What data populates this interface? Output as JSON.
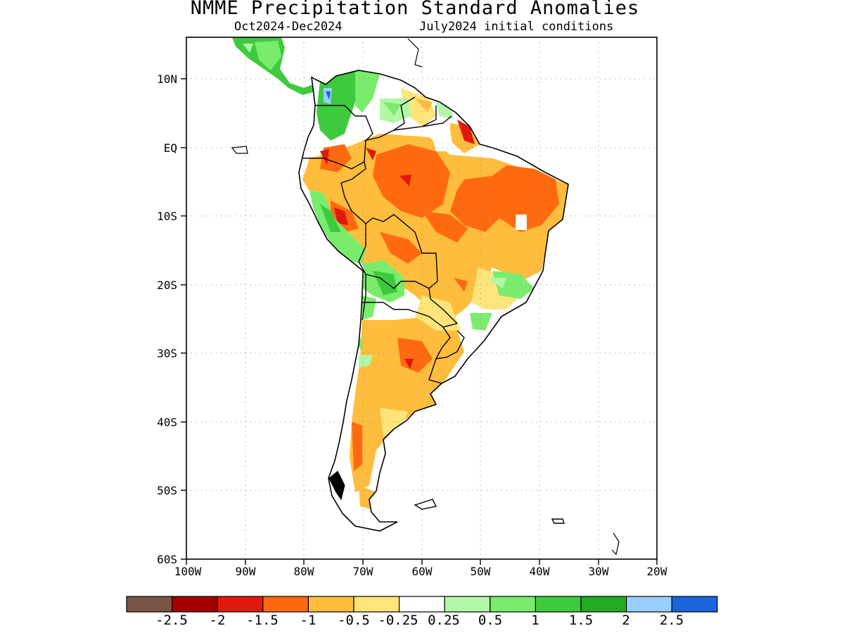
{
  "title": "NMME Precipitation Standard Anomalies",
  "period": "Oct2024-Dec2024",
  "initial_conditions": "July2024 initial conditions",
  "map": {
    "region": "South America",
    "lat_ticks": [
      "10N",
      "EQ",
      "10S",
      "20S",
      "30S",
      "40S",
      "50S",
      "60S"
    ],
    "lon_ticks": [
      "100W",
      "90W",
      "80W",
      "70W",
      "60W",
      "50W",
      "40W",
      "30W",
      "20W"
    ],
    "grid": "dotted"
  },
  "colorbar": {
    "labels": [
      "-2.5",
      "-2",
      "-1.5",
      "-1",
      "-0.5",
      "-0.25",
      "0.25",
      "0.5",
      "1",
      "1.5",
      "2",
      "2.5"
    ],
    "colors": [
      "#7a5444",
      "#a30000",
      "#e01a0a",
      "#ff6a10",
      "#ffbd3d",
      "#ffe47a",
      "#ffffff",
      "#b2f7a6",
      "#79ec6d",
      "#3dcb3d",
      "#22aa22",
      "#99cfff",
      "#1a64dc"
    ]
  },
  "anomaly_colors": {
    "dry_strong": "#e01a0a",
    "dry_moderate": "#ff6a10",
    "dry": "#ffbd3d",
    "dry_slight": "#ffe47a",
    "neutral": "#ffffff",
    "wet_slight": "#b2f7a6",
    "wet": "#79ec6d",
    "wet_moderate": "#3dcb3d",
    "wet_strong": "#22aa22",
    "very_wet": "#99cfff",
    "extreme_wet": "#1a64dc"
  }
}
